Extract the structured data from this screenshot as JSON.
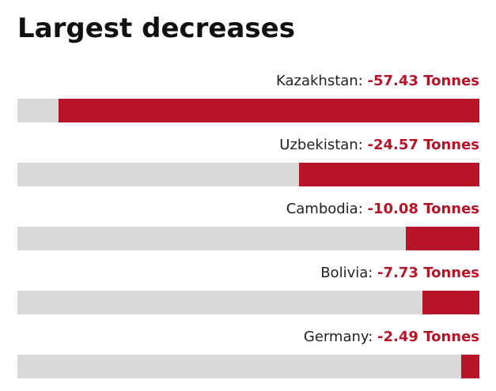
{
  "title": "Largest decreases",
  "colors": {
    "bar": "#b81428",
    "track": "#d9d9d9",
    "value_text": "#b81428"
  },
  "chart_data": {
    "type": "bar",
    "orientation": "horizontal",
    "title": "Largest decreases",
    "unit": "Tonnes",
    "categories": [
      "Kazakhstan",
      "Uzbekistan",
      "Cambodia",
      "Bolivia",
      "Germany"
    ],
    "values": [
      -57.43,
      -24.57,
      -10.08,
      -7.73,
      -2.49
    ],
    "bars": [
      {
        "name": "Kazakhstan",
        "value": -57.43,
        "value_label": "-57.43 Tonnes"
      },
      {
        "name": "Uzbekistan",
        "value": -24.57,
        "value_label": "-24.57 Tonnes"
      },
      {
        "name": "Cambodia",
        "value": -10.08,
        "value_label": "-10.08 Tonnes"
      },
      {
        "name": "Bolivia",
        "value": -7.73,
        "value_label": "-7.73 Tonnes"
      },
      {
        "name": "Germany",
        "value": -2.49,
        "value_label": "-2.49 Tonnes"
      }
    ],
    "xlim": [
      -63,
      0
    ],
    "grid": false,
    "legend": "none"
  }
}
